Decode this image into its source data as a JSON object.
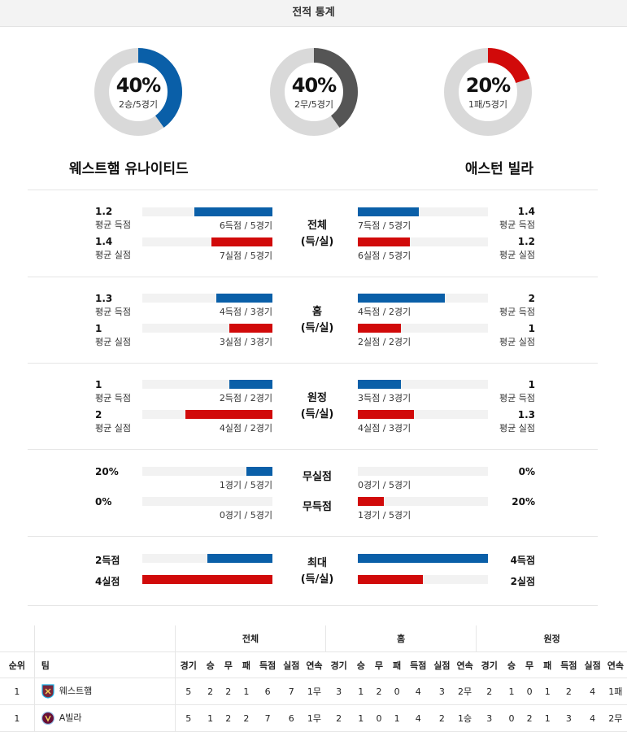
{
  "header": {
    "title": "전적 통계"
  },
  "donuts": [
    {
      "pct": "40%",
      "value": 0.4,
      "sub": "2승/5경기",
      "color": "#0a5fa8"
    },
    {
      "pct": "40%",
      "value": 0.4,
      "sub": "2무/5경기",
      "color": "#555555"
    },
    {
      "pct": "20%",
      "value": 0.2,
      "sub": "1패/5경기",
      "color": "#d10a0a"
    }
  ],
  "teams": {
    "home": "웨스트햄 유나이티드",
    "away": "애스턴 빌라"
  },
  "sections": [
    {
      "center": [
        "전체",
        "(득/실)"
      ],
      "rows": [
        {
          "home_num": "1.2",
          "home_lbl": "평균 득점",
          "home_small": "6득점 / 5경기",
          "home_fill": 0.6,
          "away_num": "1.4",
          "away_lbl": "평균 득점",
          "away_small": "7득점 / 5경기",
          "away_fill": 0.47
        },
        {
          "home_num": "1.4",
          "home_lbl": "평균 실점",
          "home_small": "7실점 / 5경기",
          "home_fill": 0.47,
          "away_num": "1.2",
          "away_lbl": "평균 실점",
          "away_small": "6실점 / 5경기",
          "away_fill": 0.4
        }
      ]
    },
    {
      "center": [
        "홈",
        "(득/실)"
      ],
      "rows": [
        {
          "home_num": "1.3",
          "home_lbl": "평균 득점",
          "home_small": "4득점 / 3경기",
          "home_fill": 0.43,
          "away_num": "2",
          "away_lbl": "평균 득점",
          "away_small": "4득점 / 2경기",
          "away_fill": 0.67
        },
        {
          "home_num": "1",
          "home_lbl": "평균 실점",
          "home_small": "3실점 / 3경기",
          "home_fill": 0.33,
          "away_num": "1",
          "away_lbl": "평균 실점",
          "away_small": "2실점 / 2경기",
          "away_fill": 0.33
        }
      ]
    },
    {
      "center": [
        "원정",
        "(득/실)"
      ],
      "rows": [
        {
          "home_num": "1",
          "home_lbl": "평균 득점",
          "home_small": "2득점 / 2경기",
          "home_fill": 0.33,
          "away_num": "1",
          "away_lbl": "평균 득점",
          "away_small": "3득점 / 3경기",
          "away_fill": 0.33
        },
        {
          "home_num": "2",
          "home_lbl": "평균 실점",
          "home_small": "4실점 / 2경기",
          "home_fill": 0.67,
          "away_num": "1.3",
          "away_lbl": "평균 실점",
          "away_small": "4실점 / 3경기",
          "away_fill": 0.43
        }
      ]
    }
  ],
  "clean": {
    "rows": [
      {
        "center": "무실점",
        "home_num": "20%",
        "home_small": "1경기 / 5경기",
        "home_fill": 0.2,
        "away_num": "0%",
        "away_small": "0경기 / 5경기",
        "away_fill": 0.0,
        "color": "blue"
      },
      {
        "center": "무득점",
        "home_num": "0%",
        "home_small": "0경기 / 5경기",
        "home_fill": 0.0,
        "away_num": "20%",
        "away_small": "1경기 / 5경기",
        "away_fill": 0.2,
        "color": "red"
      }
    ]
  },
  "max": {
    "center": [
      "최대",
      "(득/실)"
    ],
    "rows": [
      {
        "home_num": "2득점",
        "home_fill": 0.5,
        "away_num": "4득점",
        "away_fill": 1.0,
        "color": "blue"
      },
      {
        "home_num": "4실점",
        "home_fill": 1.0,
        "away_num": "2실점",
        "away_fill": 0.5,
        "color": "red"
      }
    ]
  },
  "table": {
    "group_headers": [
      "전체",
      "홈",
      "원정"
    ],
    "col_rank": "순위",
    "col_team": "팀",
    "cols": [
      "경기",
      "승",
      "무",
      "패",
      "득점",
      "실점",
      "연속"
    ],
    "rows": [
      {
        "rank": "1",
        "team": "웨스트햄",
        "crest_color": "#7a263a",
        "overall": [
          "5",
          "2",
          "2",
          "1",
          "6",
          "7",
          "1무"
        ],
        "home": [
          "3",
          "1",
          "2",
          "0",
          "4",
          "3",
          "2무"
        ],
        "away": [
          "2",
          "1",
          "0",
          "1",
          "2",
          "4",
          "1패"
        ]
      },
      {
        "rank": "1",
        "team": "A빌라",
        "crest_color": "#670e36",
        "overall": [
          "5",
          "1",
          "2",
          "2",
          "7",
          "6",
          "1무"
        ],
        "home": [
          "2",
          "1",
          "0",
          "1",
          "4",
          "2",
          "1승"
        ],
        "away": [
          "3",
          "0",
          "2",
          "1",
          "3",
          "4",
          "2무"
        ]
      }
    ]
  }
}
